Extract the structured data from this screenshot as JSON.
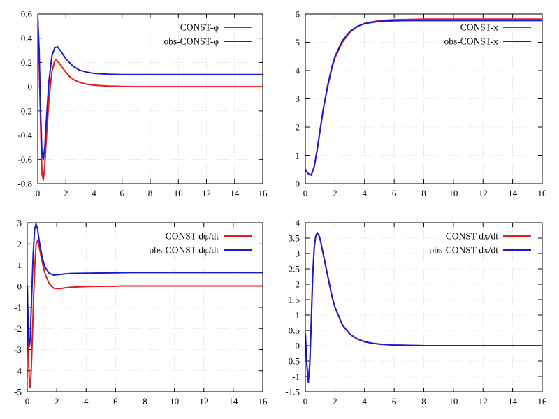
{
  "chart_data": [
    {
      "type": "line",
      "title": "",
      "xlabel": "",
      "ylabel": "",
      "xlim": [
        0,
        16
      ],
      "ylim": [
        -0.8,
        0.6
      ],
      "xticks": [
        "0",
        "2",
        "4",
        "6",
        "8",
        "10",
        "12",
        "14",
        "16"
      ],
      "yticks": [
        "-0.8",
        "-0.6",
        "-0.4",
        "-0.2",
        "0",
        "0.2",
        "0.4",
        "0.6"
      ],
      "grid": true,
      "legend": "top-right",
      "series": [
        {
          "name": "CONST-φ",
          "color": "#e41a1c",
          "x": [
            0,
            0.1,
            0.2,
            0.3,
            0.4,
            0.5,
            0.6,
            0.8,
            1.0,
            1.2,
            1.3,
            1.5,
            1.8,
            2.2,
            2.6,
            3,
            3.5,
            4,
            5,
            6,
            7,
            8,
            10,
            12,
            14,
            16
          ],
          "y": [
            0.58,
            0.2,
            -0.3,
            -0.72,
            -0.77,
            -0.65,
            -0.45,
            -0.1,
            0.12,
            0.21,
            0.22,
            0.2,
            0.15,
            0.09,
            0.055,
            0.035,
            0.02,
            0.012,
            0.005,
            0.002,
            0,
            0,
            0,
            0,
            0,
            0
          ]
        },
        {
          "name": "obs-CONST-φ",
          "color": "#1a1ad0",
          "x": [
            0,
            0.1,
            0.2,
            0.3,
            0.4,
            0.5,
            0.6,
            0.8,
            1.0,
            1.2,
            1.4,
            1.6,
            2.0,
            2.5,
            3,
            3.5,
            4,
            5,
            6,
            7,
            8,
            10,
            12,
            14,
            16
          ],
          "y": [
            0.58,
            0.3,
            -0.2,
            -0.55,
            -0.6,
            -0.5,
            -0.3,
            0.05,
            0.25,
            0.32,
            0.33,
            0.3,
            0.23,
            0.17,
            0.135,
            0.12,
            0.11,
            0.103,
            0.1,
            0.1,
            0.1,
            0.1,
            0.1,
            0.1,
            0.1
          ]
        }
      ]
    },
    {
      "type": "line",
      "title": "",
      "xlabel": "",
      "ylabel": "",
      "xlim": [
        0,
        16
      ],
      "ylim": [
        0,
        6
      ],
      "xticks": [
        "0",
        "2",
        "4",
        "6",
        "8",
        "10",
        "12",
        "14",
        "16"
      ],
      "yticks": [
        "0",
        "1",
        "2",
        "3",
        "4",
        "5",
        "6"
      ],
      "grid": true,
      "legend": "top-right",
      "series": [
        {
          "name": "CONST-x",
          "color": "#e41a1c",
          "x": [
            0,
            0.2,
            0.4,
            0.6,
            0.8,
            1,
            1.2,
            1.5,
            1.8,
            2,
            2.5,
            3,
            3.5,
            4,
            5,
            6,
            7,
            8,
            10,
            12,
            14,
            16
          ],
          "y": [
            0.5,
            0.35,
            0.3,
            0.6,
            1.2,
            1.9,
            2.6,
            3.4,
            4.1,
            4.45,
            5.0,
            5.35,
            5.55,
            5.67,
            5.77,
            5.8,
            5.81,
            5.82,
            5.82,
            5.82,
            5.82,
            5.82
          ]
        },
        {
          "name": "obs-CONST-x",
          "color": "#1a1ad0",
          "x": [
            0,
            0.2,
            0.4,
            0.6,
            0.8,
            1,
            1.2,
            1.5,
            1.8,
            2,
            2.5,
            3,
            3.5,
            4,
            5,
            6,
            7,
            8,
            10,
            12,
            14,
            16
          ],
          "y": [
            0.5,
            0.35,
            0.3,
            0.6,
            1.2,
            1.9,
            2.6,
            3.45,
            4.15,
            4.5,
            5.05,
            5.38,
            5.56,
            5.66,
            5.74,
            5.76,
            5.77,
            5.77,
            5.77,
            5.77,
            5.77,
            5.77
          ]
        }
      ]
    },
    {
      "type": "line",
      "title": "",
      "xlabel": "",
      "ylabel": "",
      "xlim": [
        0,
        16
      ],
      "ylim": [
        -5,
        3
      ],
      "xticks": [
        "0",
        "2",
        "4",
        "6",
        "8",
        "10",
        "12",
        "14",
        "16"
      ],
      "yticks": [
        "-5",
        "-4",
        "-3",
        "-2",
        "-1",
        "0",
        "1",
        "2",
        "3"
      ],
      "grid": true,
      "legend": "top-right",
      "series": [
        {
          "name": "CONST-dφ/dt",
          "color": "#e41a1c",
          "x": [
            0,
            0.05,
            0.1,
            0.15,
            0.2,
            0.25,
            0.3,
            0.4,
            0.5,
            0.6,
            0.7,
            0.8,
            1.0,
            1.2,
            1.5,
            1.8,
            2.2,
            2.6,
            3,
            4,
            5,
            6,
            6.5,
            7,
            8,
            10,
            12,
            14,
            16
          ],
          "y": [
            0,
            -2,
            -3.8,
            -4.6,
            -4.8,
            -4.3,
            -3.4,
            -1.2,
            0.8,
            2.0,
            2.15,
            1.9,
            1.2,
            0.6,
            0.1,
            -0.1,
            -0.12,
            -0.08,
            -0.05,
            -0.02,
            -0.01,
            -0.005,
            0.01,
            0.01,
            0.01,
            0.01,
            0.01,
            0.01,
            0.01
          ]
        },
        {
          "name": "obs-CONST-dφ/dt",
          "color": "#1a1ad0",
          "x": [
            0,
            0.05,
            0.1,
            0.15,
            0.2,
            0.3,
            0.4,
            0.5,
            0.6,
            0.7,
            0.8,
            1.0,
            1.2,
            1.5,
            1.8,
            2.2,
            2.6,
            3,
            4,
            5,
            6,
            7,
            8,
            10,
            12,
            14,
            16
          ],
          "y": [
            0,
            -1.5,
            -2.6,
            -2.85,
            -2.5,
            -0.5,
            1.5,
            2.7,
            2.95,
            2.7,
            2.2,
            1.4,
            0.9,
            0.6,
            0.52,
            0.55,
            0.58,
            0.6,
            0.61,
            0.62,
            0.63,
            0.64,
            0.64,
            0.64,
            0.64,
            0.64,
            0.64
          ]
        }
      ]
    },
    {
      "type": "line",
      "title": "",
      "xlabel": "",
      "ylabel": "",
      "xlim": [
        0,
        16
      ],
      "ylim": [
        -1.5,
        4
      ],
      "xticks": [
        "0",
        "2",
        "4",
        "6",
        "8",
        "10",
        "12",
        "14",
        "16"
      ],
      "yticks": [
        "-1.5",
        "-1",
        "-0.5",
        "0",
        "0.5",
        "1",
        "1.5",
        "2",
        "2.5",
        "3",
        "3.5",
        "4"
      ],
      "grid": true,
      "legend": "top-right",
      "series": [
        {
          "name": "CONST-dx/dt",
          "color": "#e41a1c",
          "x": [
            0,
            0.1,
            0.2,
            0.3,
            0.4,
            0.5,
            0.6,
            0.7,
            0.8,
            0.9,
            1.0,
            1.2,
            1.5,
            1.8,
            2,
            2.5,
            3,
            3.5,
            4,
            4.5,
            5,
            6,
            7,
            8,
            10,
            12,
            14,
            16
          ],
          "y": [
            0.4,
            -0.6,
            -1.15,
            -0.6,
            0.8,
            2.3,
            3.2,
            3.55,
            3.66,
            3.6,
            3.45,
            3.0,
            2.3,
            1.6,
            1.25,
            0.68,
            0.38,
            0.22,
            0.13,
            0.08,
            0.05,
            0.02,
            0.01,
            0,
            0,
            0,
            0,
            0
          ]
        },
        {
          "name": "obs-CONST-dx/dt",
          "color": "#1a1ad0",
          "x": [
            0,
            0.1,
            0.2,
            0.3,
            0.4,
            0.5,
            0.6,
            0.7,
            0.8,
            0.9,
            1.0,
            1.2,
            1.5,
            1.8,
            2,
            2.5,
            3,
            3.5,
            4,
            4.5,
            5,
            6,
            7,
            8,
            10,
            12,
            14,
            16
          ],
          "y": [
            0.4,
            -0.6,
            -1.2,
            -0.6,
            0.8,
            2.3,
            3.2,
            3.55,
            3.68,
            3.62,
            3.47,
            3.0,
            2.3,
            1.6,
            1.25,
            0.68,
            0.38,
            0.22,
            0.13,
            0.08,
            0.05,
            0.02,
            0.01,
            0,
            0,
            0,
            0,
            0
          ]
        }
      ]
    }
  ]
}
